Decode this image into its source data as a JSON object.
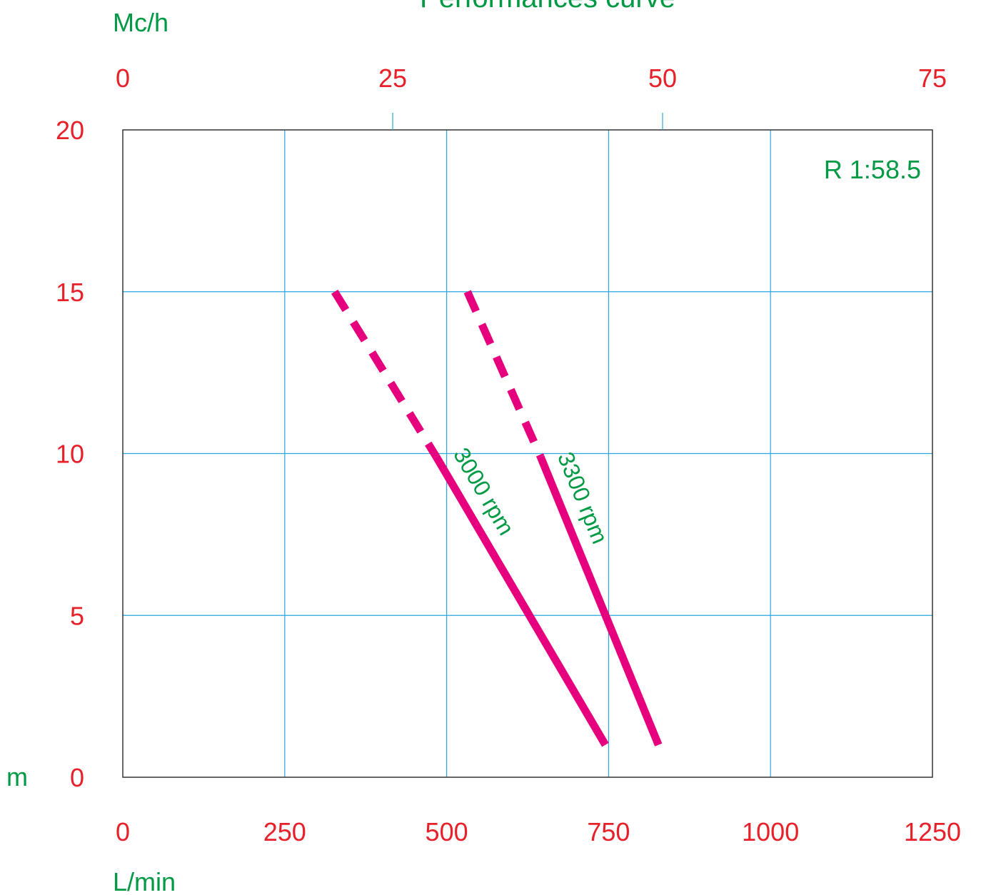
{
  "colors": {
    "tick_text": "#e8202a",
    "label_text": "#009944",
    "grid": "#2aa6e0",
    "curve": "#e6007e",
    "frame": "#333333",
    "background": "#ffffff"
  },
  "chart_data": {
    "type": "line",
    "title": "Performances curve",
    "ratio_label": "R  1:58.5",
    "xlabel": "L/min",
    "ylabel": "m",
    "x2label": "Mc/h",
    "xlim": [
      0,
      1250
    ],
    "ylim": [
      0,
      20
    ],
    "x2lim": [
      0,
      75
    ],
    "x_ticks": [
      0,
      250,
      500,
      750,
      1000,
      1250
    ],
    "y_ticks": [
      0,
      5,
      10,
      15,
      20
    ],
    "x2_ticks": [
      0,
      25,
      50,
      75
    ],
    "grid": true,
    "series": [
      {
        "name": "3000 rpm",
        "solid": {
          "x": [
            484,
            745
          ],
          "y": [
            9.9,
            1.0
          ]
        },
        "dashed": {
          "x": [
            327,
            484
          ],
          "y": [
            15.0,
            9.9
          ]
        }
      },
      {
        "name": "3300 rpm",
        "solid": {
          "x": [
            645,
            827
          ],
          "y": [
            9.9,
            1.0
          ]
        },
        "dashed": {
          "x": [
            532,
            645
          ],
          "y": [
            15.0,
            9.9
          ]
        }
      }
    ]
  }
}
